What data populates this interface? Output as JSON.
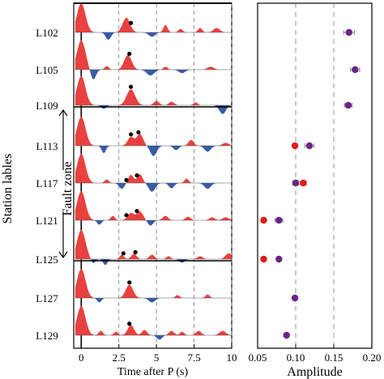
{
  "figure": {
    "left_ylabel": "Station lables",
    "fault_label": "Fault zone"
  },
  "chart_data": [
    {
      "type": "line",
      "subtype": "waveform-record-section",
      "xlabel": "Time after P (s)",
      "xlim": [
        -0.5,
        10
      ],
      "xticks": [
        0,
        2.5,
        5,
        7.5,
        10
      ],
      "xtick_labels": [
        "0",
        "2.5",
        "5",
        "7.5",
        "10"
      ],
      "grid_dashed_x": [
        2.5,
        5,
        7.5,
        10
      ],
      "fill_colors": {
        "positive": "#e8413f",
        "negative": "#3a5aa8"
      },
      "boundary_lines_after_station": [
        "L109",
        "L125"
      ],
      "stations": [
        {
          "name": "L102",
          "pulses": [
            [
              0,
              1.0,
              0.4
            ],
            [
              1.8,
              -0.25,
              0.25
            ],
            [
              3.0,
              0.5,
              0.35
            ],
            [
              4.7,
              -0.15,
              0.3
            ],
            [
              5.6,
              0.25,
              0.2
            ],
            [
              6.6,
              0.12,
              0.2
            ],
            [
              7.9,
              0.15,
              0.2
            ],
            [
              9.0,
              0.15,
              0.3
            ]
          ],
          "markers": [
            3.3
          ]
        },
        {
          "name": "L105",
          "pulses": [
            [
              0,
              1.0,
              0.4
            ],
            [
              0.8,
              -0.35,
              0.25
            ],
            [
              1.7,
              0.12,
              0.2
            ],
            [
              3.1,
              0.5,
              0.35
            ],
            [
              4.6,
              -0.2,
              0.35
            ],
            [
              5.6,
              0.1,
              0.2
            ],
            [
              6.7,
              -0.12,
              0.3
            ],
            [
              8.6,
              0.1,
              0.3
            ]
          ],
          "markers": [
            3.2
          ]
        },
        {
          "name": "L109",
          "pulses": [
            [
              0,
              1.0,
              0.4
            ],
            [
              1.5,
              -0.12,
              0.25
            ],
            [
              3.3,
              0.55,
              0.4
            ],
            [
              5.0,
              0.15,
              0.25
            ],
            [
              6.0,
              0.12,
              0.25
            ],
            [
              7.6,
              0.1,
              0.2
            ],
            [
              9.4,
              -0.3,
              0.3
            ]
          ],
          "markers": [
            3.3
          ]
        },
        {
          "name": "L113",
          "pulses": [
            [
              0,
              1.0,
              0.4
            ],
            [
              1.5,
              -0.25,
              0.2
            ],
            [
              3.3,
              0.3,
              0.3
            ],
            [
              3.9,
              0.4,
              0.3
            ],
            [
              4.8,
              -0.35,
              0.3
            ],
            [
              6.3,
              -0.15,
              0.25
            ],
            [
              7.3,
              0.2,
              0.25
            ],
            [
              8.4,
              -0.2,
              0.3
            ],
            [
              9.6,
              0.1,
              0.3
            ]
          ],
          "markers": [
            3.3,
            3.8
          ]
        },
        {
          "name": "L117",
          "pulses": [
            [
              0,
              1.0,
              0.4
            ],
            [
              1.7,
              0.12,
              0.2
            ],
            [
              2.7,
              -0.2,
              0.25
            ],
            [
              3.3,
              0.28,
              0.25
            ],
            [
              3.9,
              0.3,
              0.25
            ],
            [
              4.7,
              -0.3,
              0.3
            ],
            [
              6.0,
              -0.18,
              0.25
            ],
            [
              7.0,
              0.15,
              0.2
            ],
            [
              8.4,
              -0.2,
              0.3
            ]
          ],
          "markers": [
            3.0,
            3.7
          ]
        },
        {
          "name": "L121",
          "pulses": [
            [
              0,
              1.0,
              0.4
            ],
            [
              1.2,
              -0.15,
              0.2
            ],
            [
              2.1,
              0.15,
              0.2
            ],
            [
              3.3,
              0.25,
              0.3
            ],
            [
              3.9,
              0.3,
              0.3
            ],
            [
              4.6,
              -0.18,
              0.25
            ],
            [
              5.6,
              0.15,
              0.25
            ],
            [
              7.1,
              0.12,
              0.25
            ],
            [
              8.7,
              0.1,
              0.25
            ],
            [
              9.6,
              0.1,
              0.3
            ]
          ],
          "markers": [
            3.0,
            3.7
          ]
        },
        {
          "name": "L125",
          "pulses": [
            [
              0,
              1.0,
              0.4
            ],
            [
              0.8,
              -0.15,
              0.2
            ],
            [
              1.6,
              -0.2,
              0.2
            ],
            [
              2.7,
              0.15,
              0.2
            ],
            [
              3.5,
              0.18,
              0.25
            ],
            [
              4.7,
              0.15,
              0.25
            ],
            [
              5.8,
              0.1,
              0.2
            ],
            [
              6.7,
              -0.12,
              0.25
            ],
            [
              7.9,
              0.1,
              0.25
            ],
            [
              9.8,
              0.2,
              0.3
            ]
          ],
          "markers": [
            2.8,
            3.6
          ]
        },
        {
          "name": "L127",
          "pulses": [
            [
              0,
              1.0,
              0.4
            ],
            [
              1.2,
              -0.15,
              0.2
            ],
            [
              3.2,
              0.45,
              0.35
            ],
            [
              4.7,
              -0.15,
              0.3
            ],
            [
              6.4,
              0.1,
              0.2
            ],
            [
              8.4,
              0.12,
              0.2
            ]
          ],
          "markers": [
            3.2
          ]
        },
        {
          "name": "L129",
          "pulses": [
            [
              0,
              1.0,
              0.4
            ],
            [
              1.3,
              0.15,
              0.2
            ],
            [
              2.3,
              0.12,
              0.2
            ],
            [
              3.3,
              0.35,
              0.3
            ],
            [
              4.2,
              0.18,
              0.25
            ],
            [
              5.2,
              -0.15,
              0.25
            ],
            [
              6.0,
              0.15,
              0.25
            ],
            [
              6.7,
              0.12,
              0.2
            ],
            [
              7.8,
              0.15,
              0.25
            ],
            [
              9.4,
              0.15,
              0.3
            ]
          ],
          "markers": [
            3.2
          ]
        }
      ]
    },
    {
      "type": "scatter",
      "xlabel": "Amplitude",
      "xlim": [
        0.05,
        0.2
      ],
      "xticks": [
        0.05,
        0.1,
        0.15,
        0.2
      ],
      "xtick_labels": [
        "0.05",
        "0.10",
        "0.15",
        "0.20"
      ],
      "grid_dashed_x": [
        0.1,
        0.15
      ],
      "colors": {
        "red": "#e01c1c",
        "purple": "#6b2585"
      },
      "points": [
        {
          "station": "L102",
          "color": "purple",
          "x": 0.17,
          "err": 0.007
        },
        {
          "station": "L105",
          "color": "purple",
          "x": 0.178,
          "err": 0.006
        },
        {
          "station": "L109",
          "color": "purple",
          "x": 0.169,
          "err": 0.005
        },
        {
          "station": "L113",
          "color": "red",
          "x": 0.099,
          "err": 0
        },
        {
          "station": "L113",
          "color": "purple",
          "x": 0.118,
          "err": 0.006
        },
        {
          "station": "L117",
          "color": "purple",
          "x": 0.1,
          "err": 0.004
        },
        {
          "station": "L117",
          "color": "red",
          "x": 0.11,
          "err": 0.004
        },
        {
          "station": "L121",
          "color": "red",
          "x": 0.058,
          "err": 0
        },
        {
          "station": "L121",
          "color": "purple",
          "x": 0.078,
          "err": 0.005
        },
        {
          "station": "L125",
          "color": "red",
          "x": 0.058,
          "err": 0
        },
        {
          "station": "L125",
          "color": "purple",
          "x": 0.078,
          "err": 0.003
        },
        {
          "station": "L127",
          "color": "purple",
          "x": 0.099,
          "err": 0
        },
        {
          "station": "L129",
          "color": "purple",
          "x": 0.088,
          "err": 0
        }
      ]
    }
  ]
}
